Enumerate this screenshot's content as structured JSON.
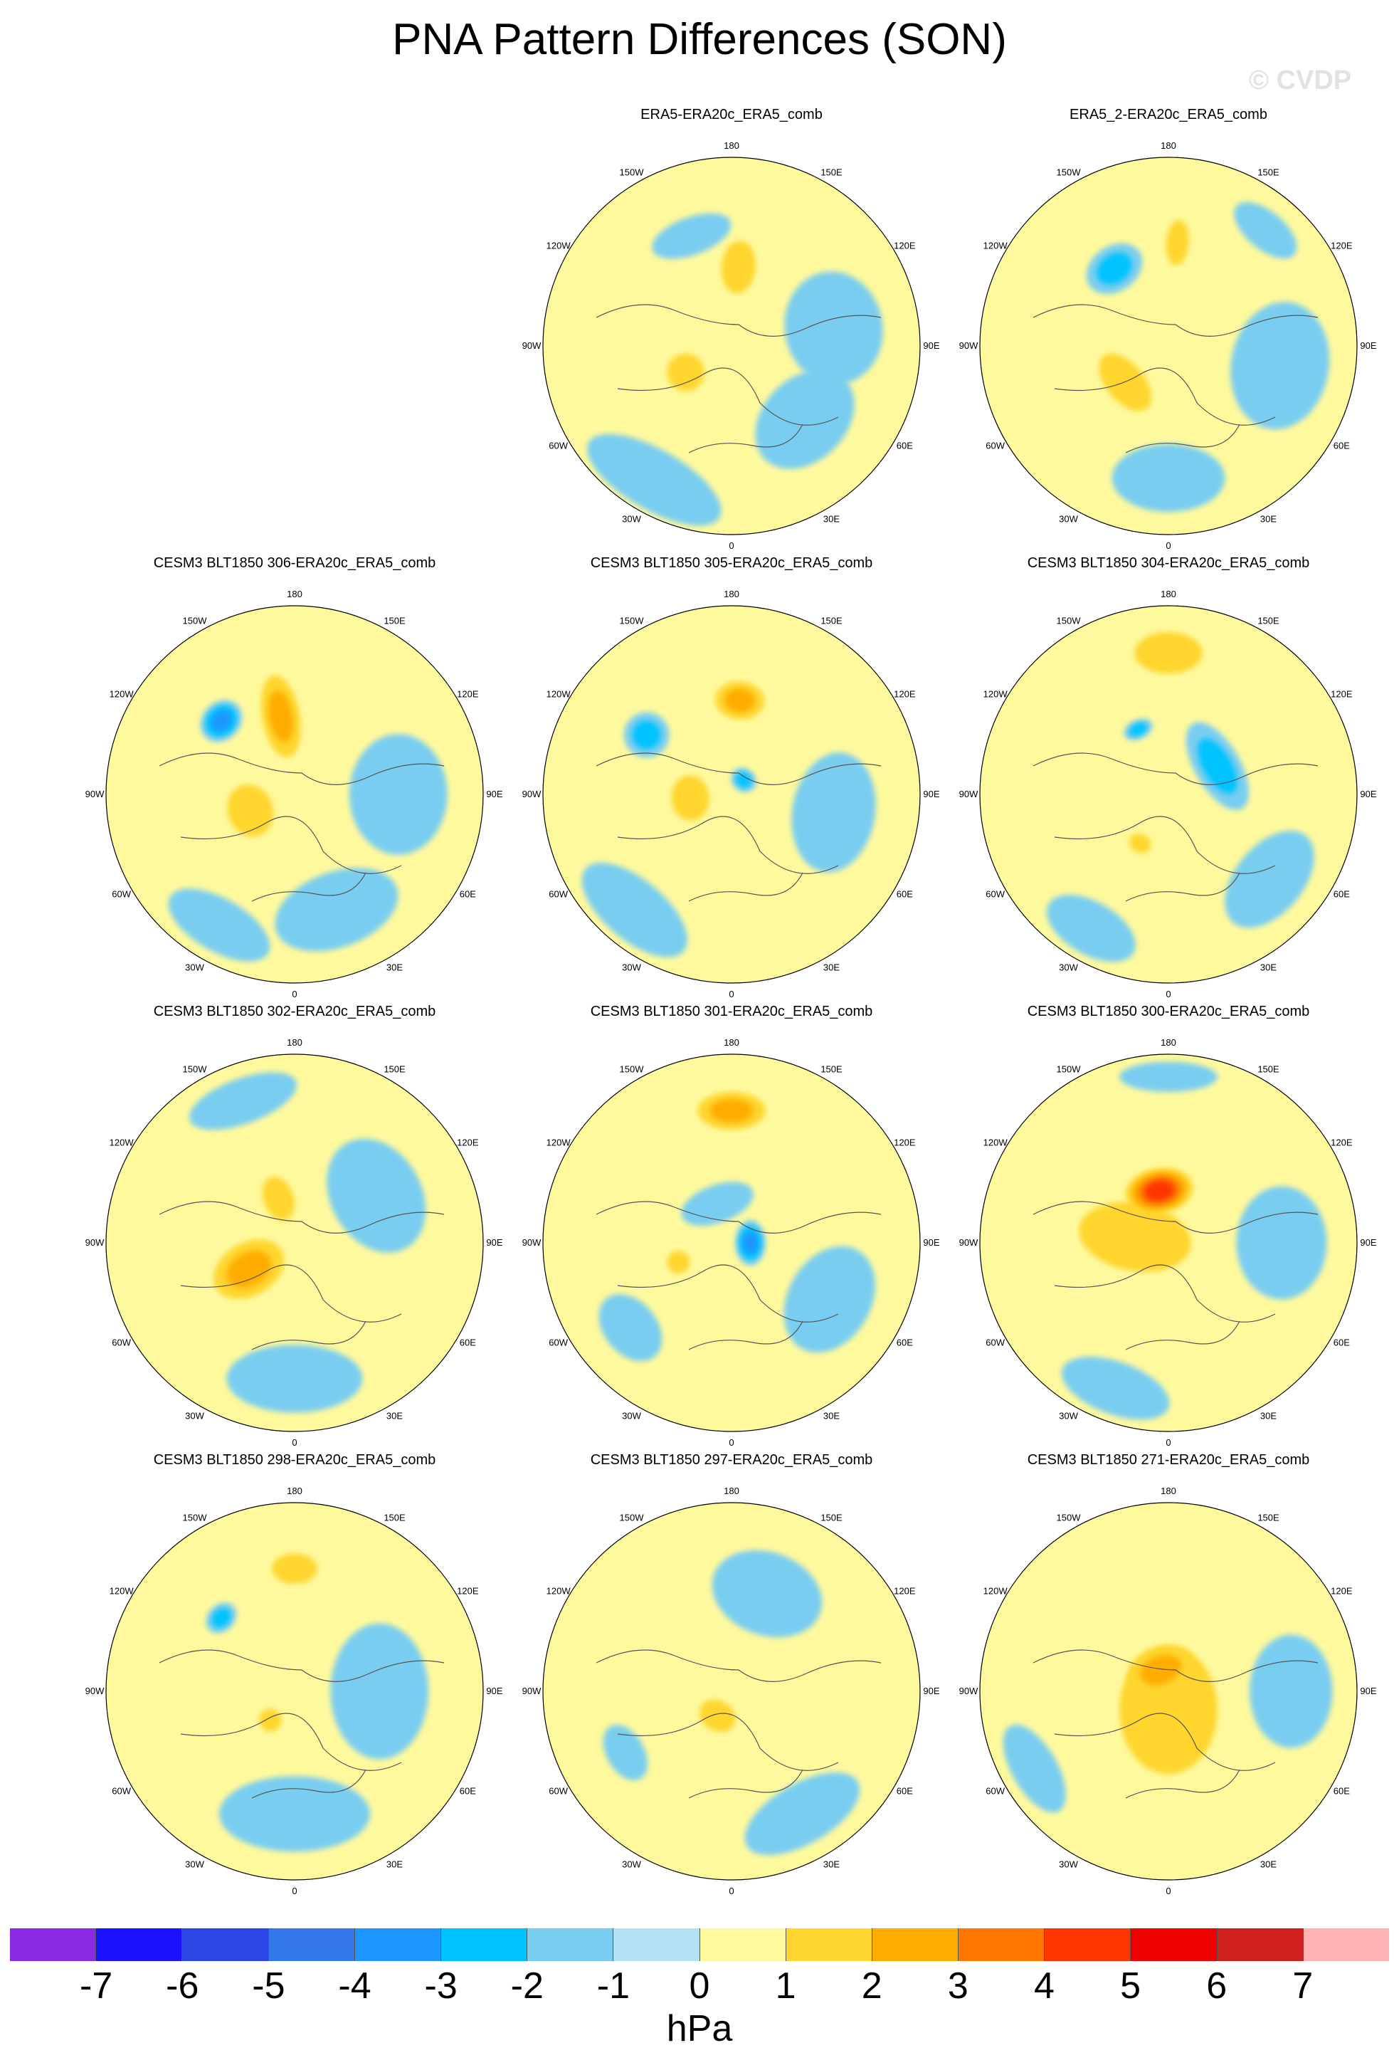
{
  "title": "PNA Pattern Differences (SON)",
  "watermark": "© CVDP",
  "longitude_labels": [
    "180",
    "150E",
    "120E",
    "90E",
    "60E",
    "30E",
    "0",
    "30W",
    "60W",
    "90W",
    "120W",
    "150W"
  ],
  "panels": [
    {
      "title": "ERA5-ERA20c_ERA5_comb",
      "anomalies": [
        {
          "lon": 200,
          "colat": 0.62,
          "sx": 0.22,
          "sy": 0.1,
          "v": -1
        },
        {
          "lon": 175,
          "colat": 0.42,
          "sx": 0.09,
          "sy": 0.14,
          "v": 2
        },
        {
          "lon": 300,
          "colat": 0.28,
          "sx": 0.1,
          "sy": 0.1,
          "v": 2
        },
        {
          "lon": 45,
          "colat": 0.55,
          "sx": 0.3,
          "sy": 0.22,
          "v": -1
        },
        {
          "lon": 100,
          "colat": 0.55,
          "sx": 0.3,
          "sy": 0.26,
          "v": -1
        },
        {
          "lon": 330,
          "colat": 0.82,
          "sx": 0.4,
          "sy": 0.16,
          "v": -1
        }
      ]
    },
    {
      "title": "ERA5_2-ERA20c_ERA5_comb",
      "anomalies": [
        {
          "lon": 215,
          "colat": 0.5,
          "sx": 0.16,
          "sy": 0.12,
          "v": -2
        },
        {
          "lon": 175,
          "colat": 0.55,
          "sx": 0.06,
          "sy": 0.12,
          "v": 2
        },
        {
          "lon": 310,
          "colat": 0.3,
          "sx": 0.18,
          "sy": 0.1,
          "v": 2
        },
        {
          "lon": 80,
          "colat": 0.6,
          "sx": 0.34,
          "sy": 0.26,
          "v": -1
        },
        {
          "lon": 0,
          "colat": 0.7,
          "sx": 0.3,
          "sy": 0.18,
          "v": -1
        },
        {
          "lon": 140,
          "colat": 0.8,
          "sx": 0.2,
          "sy": 0.1,
          "v": -1
        }
      ]
    },
    {
      "title": "CESM3 BLT1850 306-ERA20c_ERA5_comb",
      "anomalies": [
        {
          "lon": 225,
          "colat": 0.55,
          "sx": 0.12,
          "sy": 0.1,
          "v": -3
        },
        {
          "lon": 190,
          "colat": 0.42,
          "sx": 0.1,
          "sy": 0.22,
          "v": 3
        },
        {
          "lon": 290,
          "colat": 0.25,
          "sx": 0.14,
          "sy": 0.12,
          "v": 2
        },
        {
          "lon": 90,
          "colat": 0.55,
          "sx": 0.32,
          "sy": 0.26,
          "v": -1
        },
        {
          "lon": 20,
          "colat": 0.65,
          "sx": 0.34,
          "sy": 0.2,
          "v": -1
        },
        {
          "lon": 330,
          "colat": 0.8,
          "sx": 0.3,
          "sy": 0.14,
          "v": -1
        }
      ]
    },
    {
      "title": "CESM3 BLT1850 305-ERA20c_ERA5_comb",
      "anomalies": [
        {
          "lon": 235,
          "colat": 0.55,
          "sx": 0.12,
          "sy": 0.12,
          "v": -2
        },
        {
          "lon": 175,
          "colat": 0.5,
          "sx": 0.13,
          "sy": 0.1,
          "v": 3
        },
        {
          "lon": 275,
          "colat": 0.22,
          "sx": 0.12,
          "sy": 0.1,
          "v": 2
        },
        {
          "lon": 140,
          "colat": 0.1,
          "sx": 0.07,
          "sy": 0.06,
          "v": -2
        },
        {
          "lon": 80,
          "colat": 0.55,
          "sx": 0.32,
          "sy": 0.22,
          "v": -1
        },
        {
          "lon": 320,
          "colat": 0.8,
          "sx": 0.34,
          "sy": 0.16,
          "v": -1
        }
      ]
    },
    {
      "title": "CESM3 BLT1850 304-ERA20c_ERA5_comb",
      "anomalies": [
        {
          "lon": 180,
          "colat": 0.75,
          "sx": 0.18,
          "sy": 0.11,
          "v": 2
        },
        {
          "lon": 120,
          "colat": 0.3,
          "sx": 0.26,
          "sy": 0.12,
          "v": -2
        },
        {
          "lon": 205,
          "colat": 0.38,
          "sx": 0.08,
          "sy": 0.05,
          "v": -2
        },
        {
          "lon": 330,
          "colat": 0.3,
          "sx": 0.06,
          "sy": 0.05,
          "v": 2
        },
        {
          "lon": 50,
          "colat": 0.7,
          "sx": 0.3,
          "sy": 0.18,
          "v": -1
        },
        {
          "lon": 330,
          "colat": 0.82,
          "sx": 0.26,
          "sy": 0.14,
          "v": -1
        }
      ]
    },
    {
      "title": "CESM3 BLT1850 302-ERA20c_ERA5_comb",
      "anomalies": [
        {
          "lon": 300,
          "colat": 0.28,
          "sx": 0.14,
          "sy": 0.2,
          "v": 3
        },
        {
          "lon": 200,
          "colat": 0.25,
          "sx": 0.08,
          "sy": 0.12,
          "v": 2
        },
        {
          "lon": 120,
          "colat": 0.5,
          "sx": 0.32,
          "sy": 0.24,
          "v": -1
        },
        {
          "lon": 0,
          "colat": 0.72,
          "sx": 0.36,
          "sy": 0.18,
          "v": -1
        },
        {
          "lon": 200,
          "colat": 0.8,
          "sx": 0.3,
          "sy": 0.12,
          "v": -1
        }
      ]
    },
    {
      "title": "CESM3 BLT1850 301-ERA20c_ERA5_comb",
      "anomalies": [
        {
          "lon": 180,
          "colat": 0.7,
          "sx": 0.18,
          "sy": 0.1,
          "v": 3
        },
        {
          "lon": 90,
          "colat": 0.1,
          "sx": 0.12,
          "sy": 0.08,
          "v": -3
        },
        {
          "lon": 200,
          "colat": 0.22,
          "sx": 0.2,
          "sy": 0.1,
          "v": -1
        },
        {
          "lon": 290,
          "colat": 0.3,
          "sx": 0.06,
          "sy": 0.06,
          "v": 2
        },
        {
          "lon": 60,
          "colat": 0.6,
          "sx": 0.3,
          "sy": 0.22,
          "v": -1
        },
        {
          "lon": 310,
          "colat": 0.7,
          "sx": 0.2,
          "sy": 0.14,
          "v": -1
        }
      ]
    },
    {
      "title": "CESM3 BLT1850 300-ERA20c_ERA5_comb",
      "anomalies": [
        {
          "lon": 190,
          "colat": 0.28,
          "sx": 0.18,
          "sy": 0.12,
          "v": 5
        },
        {
          "lon": 260,
          "colat": 0.18,
          "sx": 0.18,
          "sy": 0.3,
          "v": 2
        },
        {
          "lon": 90,
          "colat": 0.6,
          "sx": 0.3,
          "sy": 0.24,
          "v": -1
        },
        {
          "lon": 180,
          "colat": 0.88,
          "sx": 0.26,
          "sy": 0.08,
          "v": -1
        },
        {
          "lon": 340,
          "colat": 0.82,
          "sx": 0.3,
          "sy": 0.14,
          "v": -1
        }
      ]
    },
    {
      "title": "CESM3 BLT1850 298-ERA20c_ERA5_comb",
      "anomalies": [
        {
          "lon": 180,
          "colat": 0.65,
          "sx": 0.12,
          "sy": 0.08,
          "v": 2
        },
        {
          "lon": 225,
          "colat": 0.55,
          "sx": 0.09,
          "sy": 0.07,
          "v": -2
        },
        {
          "lon": 320,
          "colat": 0.2,
          "sx": 0.06,
          "sy": 0.06,
          "v": 2
        },
        {
          "lon": 90,
          "colat": 0.45,
          "sx": 0.36,
          "sy": 0.26,
          "v": -1
        },
        {
          "lon": 0,
          "colat": 0.65,
          "sx": 0.4,
          "sy": 0.2,
          "v": -1
        }
      ]
    },
    {
      "title": "CESM3 BLT1850 297-ERA20c_ERA5_comb",
      "anomalies": [
        {
          "lon": 330,
          "colat": 0.15,
          "sx": 0.1,
          "sy": 0.08,
          "v": 2
        },
        {
          "lon": 160,
          "colat": 0.55,
          "sx": 0.3,
          "sy": 0.22,
          "v": -1
        },
        {
          "lon": 300,
          "colat": 0.65,
          "sx": 0.16,
          "sy": 0.1,
          "v": -1
        },
        {
          "lon": 30,
          "colat": 0.75,
          "sx": 0.34,
          "sy": 0.16,
          "v": -1
        }
      ]
    },
    {
      "title": "CESM3 BLT1850 271-ERA20c_ERA5_comb",
      "anomalies": [
        {
          "lon": 200,
          "colat": 0.12,
          "sx": 0.18,
          "sy": 0.12,
          "v": 3
        },
        {
          "lon": 0,
          "colat": 0.1,
          "sx": 0.26,
          "sy": 0.34,
          "v": 2
        },
        {
          "lon": 90,
          "colat": 0.65,
          "sx": 0.3,
          "sy": 0.22,
          "v": -1
        },
        {
          "lon": 300,
          "colat": 0.82,
          "sx": 0.26,
          "sy": 0.12,
          "v": -1
        }
      ]
    }
  ],
  "colorbar": {
    "units": "hPa",
    "ticks": [
      "-7",
      "-6",
      "-5",
      "-4",
      "-3",
      "-2",
      "-1",
      "0",
      "1",
      "2",
      "3",
      "4",
      "5",
      "6",
      "7"
    ],
    "colors": [
      "#8a2be2",
      "#1c12ff",
      "#2c46e6",
      "#3377ea",
      "#1e96ff",
      "#00c3ff",
      "#79cdf0",
      "#b3e0f2",
      "#fff99e",
      "#ffd52f",
      "#ffac00",
      "#ff7700",
      "#ff3500",
      "#ec0000",
      "#d02020",
      "#ffb2b2"
    ]
  }
}
